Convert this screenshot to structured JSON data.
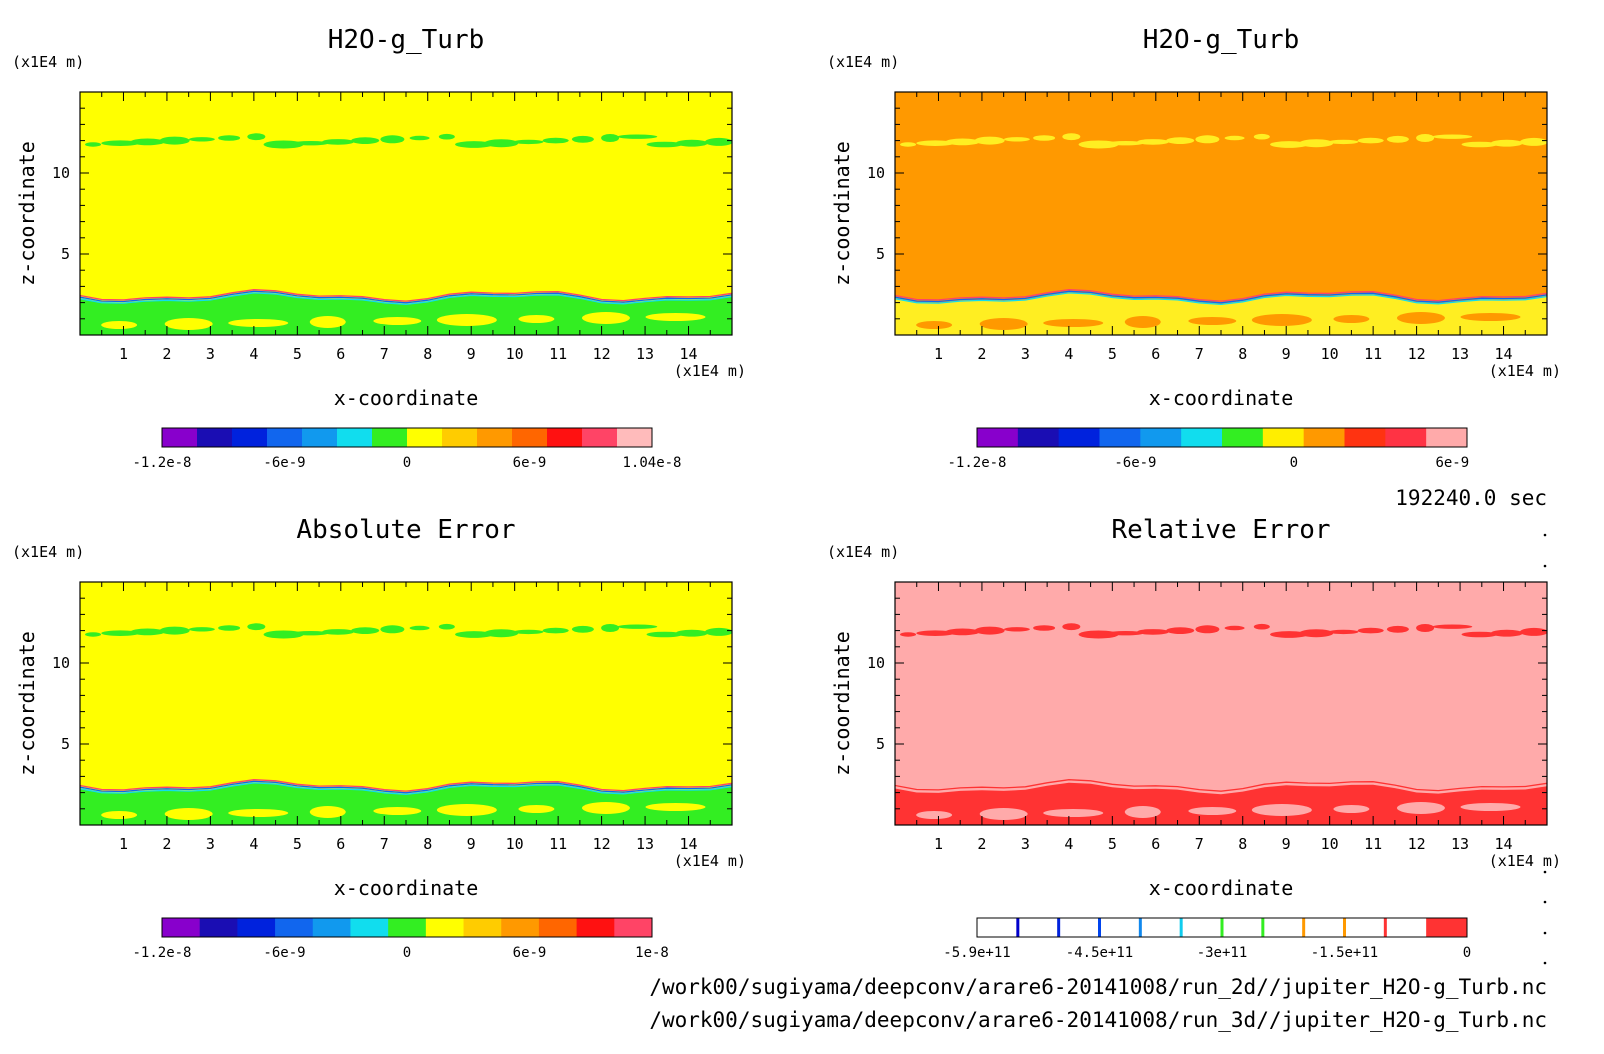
{
  "figure": {
    "time_label": "192240.0 sec",
    "file_paths": [
      "/work00/sugiyama/deepconv/arare6-20141008/run_2d//jupiter_H2O-g_Turb.nc",
      "/work00/sugiyama/deepconv/arare6-20141008/run_3d//jupiter_H2O-g_Turb.nc"
    ]
  },
  "chart_data": [
    {
      "type": "heatmap",
      "title": "H2O-g_Turb",
      "xlabel": "x-coordinate",
      "ylabel": "z-coordinate",
      "x_unit": "(x1E4 m)",
      "y_unit": "(x1E4 m)",
      "xlim": [
        0,
        15
      ],
      "ylim": [
        0,
        15
      ],
      "x_ticks": [
        1,
        2,
        3,
        4,
        5,
        6,
        7,
        8,
        9,
        10,
        11,
        12,
        13,
        14
      ],
      "y_ticks": [
        5,
        10
      ],
      "background_color": "#ffff00",
      "features": [
        {
          "kind": "upper_band",
          "z": 12,
          "color": "#33ee22"
        },
        {
          "kind": "lower_layer",
          "z_top": 2.5,
          "color": "#33ee22"
        }
      ],
      "colorbar": {
        "colors": [
          "#8800cc",
          "#1a0db3",
          "#0022dd",
          "#1166ee",
          "#1199ee",
          "#11ddee",
          "#33ee22",
          "#ffff00",
          "#ffcc00",
          "#ff9900",
          "#ff6600",
          "#ff1111",
          "#ff4466",
          "#ffbbbb"
        ],
        "tick_labels": [
          "-1.2e-8",
          "-6e-9",
          "0",
          "6e-9",
          "1.04e-8"
        ]
      }
    },
    {
      "type": "heatmap",
      "title": "H2O-g_Turb",
      "xlabel": "x-coordinate",
      "ylabel": "z-coordinate",
      "x_unit": "(x1E4 m)",
      "y_unit": "(x1E4 m)",
      "xlim": [
        0,
        15
      ],
      "ylim": [
        0,
        15
      ],
      "x_ticks": [
        1,
        2,
        3,
        4,
        5,
        6,
        7,
        8,
        9,
        10,
        11,
        12,
        13,
        14
      ],
      "y_ticks": [
        5,
        10
      ],
      "background_color": "#ff9900",
      "features": [
        {
          "kind": "upper_band",
          "z": 12,
          "color": "#ffee22"
        },
        {
          "kind": "lower_layer",
          "z_top": 2.5,
          "color": "#ffee22"
        }
      ],
      "colorbar": {
        "colors": [
          "#8800cc",
          "#1a0db3",
          "#0022dd",
          "#1166ee",
          "#1199ee",
          "#11ddee",
          "#33ee22",
          "#ffee00",
          "#ff9900",
          "#ff3311",
          "#ff3344",
          "#ffaaaa"
        ],
        "tick_labels": [
          "-1.2e-8",
          "-6e-9",
          "0",
          "6e-9"
        ]
      }
    },
    {
      "type": "heatmap",
      "title": "Absolute Error",
      "xlabel": "x-coordinate",
      "ylabel": "z-coordinate",
      "x_unit": "(x1E4 m)",
      "y_unit": "(x1E4 m)",
      "xlim": [
        0,
        15
      ],
      "ylim": [
        0,
        15
      ],
      "x_ticks": [
        1,
        2,
        3,
        4,
        5,
        6,
        7,
        8,
        9,
        10,
        11,
        12,
        13,
        14
      ],
      "y_ticks": [
        5,
        10
      ],
      "background_color": "#ffff00",
      "features": [
        {
          "kind": "upper_band",
          "z": 12,
          "color": "#33ee22"
        },
        {
          "kind": "lower_layer",
          "z_top": 2.5,
          "color": "#33ee22"
        }
      ],
      "colorbar": {
        "colors": [
          "#8800cc",
          "#1a0db3",
          "#0022dd",
          "#1166ee",
          "#1199ee",
          "#11ddee",
          "#33ee22",
          "#ffff00",
          "#ffcc00",
          "#ff9900",
          "#ff6600",
          "#ff1111",
          "#ff4466"
        ],
        "tick_labels": [
          "-1.2e-8",
          "-6e-9",
          "0",
          "6e-9",
          "1e-8"
        ]
      }
    },
    {
      "type": "heatmap",
      "title": "Relative Error",
      "xlabel": "x-coordinate",
      "ylabel": "z-coordinate",
      "x_unit": "(x1E4 m)",
      "y_unit": "(x1E4 m)",
      "xlim": [
        0,
        15
      ],
      "ylim": [
        0,
        15
      ],
      "x_ticks": [
        1,
        2,
        3,
        4,
        5,
        6,
        7,
        8,
        9,
        10,
        11,
        12,
        13,
        14
      ],
      "y_ticks": [
        5,
        10
      ],
      "background_color": "#ffaaaa",
      "features": [
        {
          "kind": "upper_band",
          "z": 12,
          "color": "#ff3333"
        },
        {
          "kind": "lower_layer",
          "z_top": 2.5,
          "color": "#ff3333"
        }
      ],
      "colorbar": {
        "colors": [
          "#ffffff",
          "#ffffff",
          "#ffffff",
          "#ffffff",
          "#ffffff",
          "#ffffff",
          "#ffffff",
          "#ffffff",
          "#ffffff",
          "#ffffff",
          "#ffffff",
          "#ff3333"
        ],
        "contour_line_colors": [
          "#0000cc",
          "#0022dd",
          "#0044ee",
          "#1188ee",
          "#11ccee",
          "#33ee22",
          "#33ee22",
          "#ff9900",
          "#ff9900",
          "#ff3333"
        ],
        "tick_labels": [
          "-5.9e+11",
          "-4.5e+11",
          "-3e+11",
          "-1.5e+11",
          "0"
        ]
      }
    }
  ]
}
